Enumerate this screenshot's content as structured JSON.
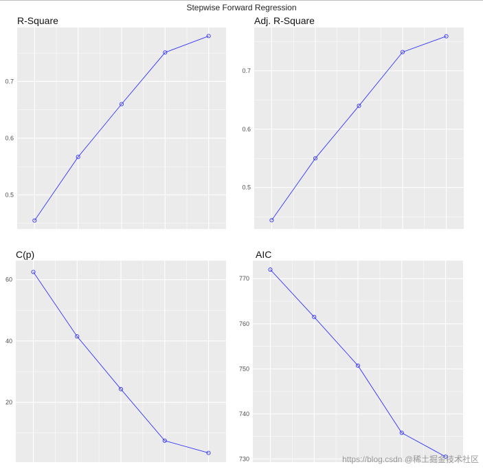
{
  "page": {
    "title": "Stepwise Forward Regression",
    "watermark": "https://blog.csdn @稀土掘金技术社区"
  },
  "colors": {
    "panel_bg": "#ebebeb",
    "grid": "#ffffff",
    "line": "#3333ff",
    "axis_text": "#4d4d4d"
  },
  "chart_data": [
    {
      "type": "line",
      "title": "R-Square",
      "x": [
        1,
        2,
        3,
        4,
        5
      ],
      "values": [
        0.455,
        0.567,
        0.66,
        0.751,
        0.78
      ],
      "xlim": [
        0.6,
        5.4
      ],
      "ylim": [
        0.44,
        0.795
      ],
      "yticks": [
        0.5,
        0.6,
        0.7
      ],
      "ytick_labels": [
        "0.5",
        "0.6",
        "0.7"
      ],
      "grid": true
    },
    {
      "type": "line",
      "title": "Adj. R-Square",
      "x": [
        1,
        2,
        3,
        4,
        5
      ],
      "values": [
        0.444,
        0.55,
        0.64,
        0.732,
        0.759
      ],
      "xlim": [
        0.6,
        5.4
      ],
      "ylim": [
        0.429,
        0.774
      ],
      "yticks": [
        0.5,
        0.6,
        0.7
      ],
      "ytick_labels": [
        "0.5",
        "0.6",
        "0.7"
      ],
      "grid": true
    },
    {
      "type": "line",
      "title": "C(p)",
      "x": [
        1,
        2,
        3,
        4,
        5
      ],
      "values": [
        62.5,
        41.5,
        24.3,
        7.5,
        3.5
      ],
      "xlim": [
        0.6,
        5.4
      ],
      "ylim": [
        0.5,
        66.2
      ],
      "yticks": [
        20,
        40,
        60
      ],
      "ytick_labels": [
        "20",
        "40",
        "60"
      ],
      "grid": true
    },
    {
      "type": "line",
      "title": "AIC",
      "x": [
        1,
        2,
        3,
        4,
        5
      ],
      "values": [
        772.0,
        761.5,
        750.7,
        735.8,
        730.5
      ],
      "xlim": [
        0.6,
        5.4
      ],
      "ylim": [
        729.3,
        774.0
      ],
      "yticks": [
        730,
        740,
        750,
        760,
        770
      ],
      "ytick_labels": [
        "730",
        "740",
        "750",
        "760",
        "770"
      ],
      "grid": true
    }
  ]
}
